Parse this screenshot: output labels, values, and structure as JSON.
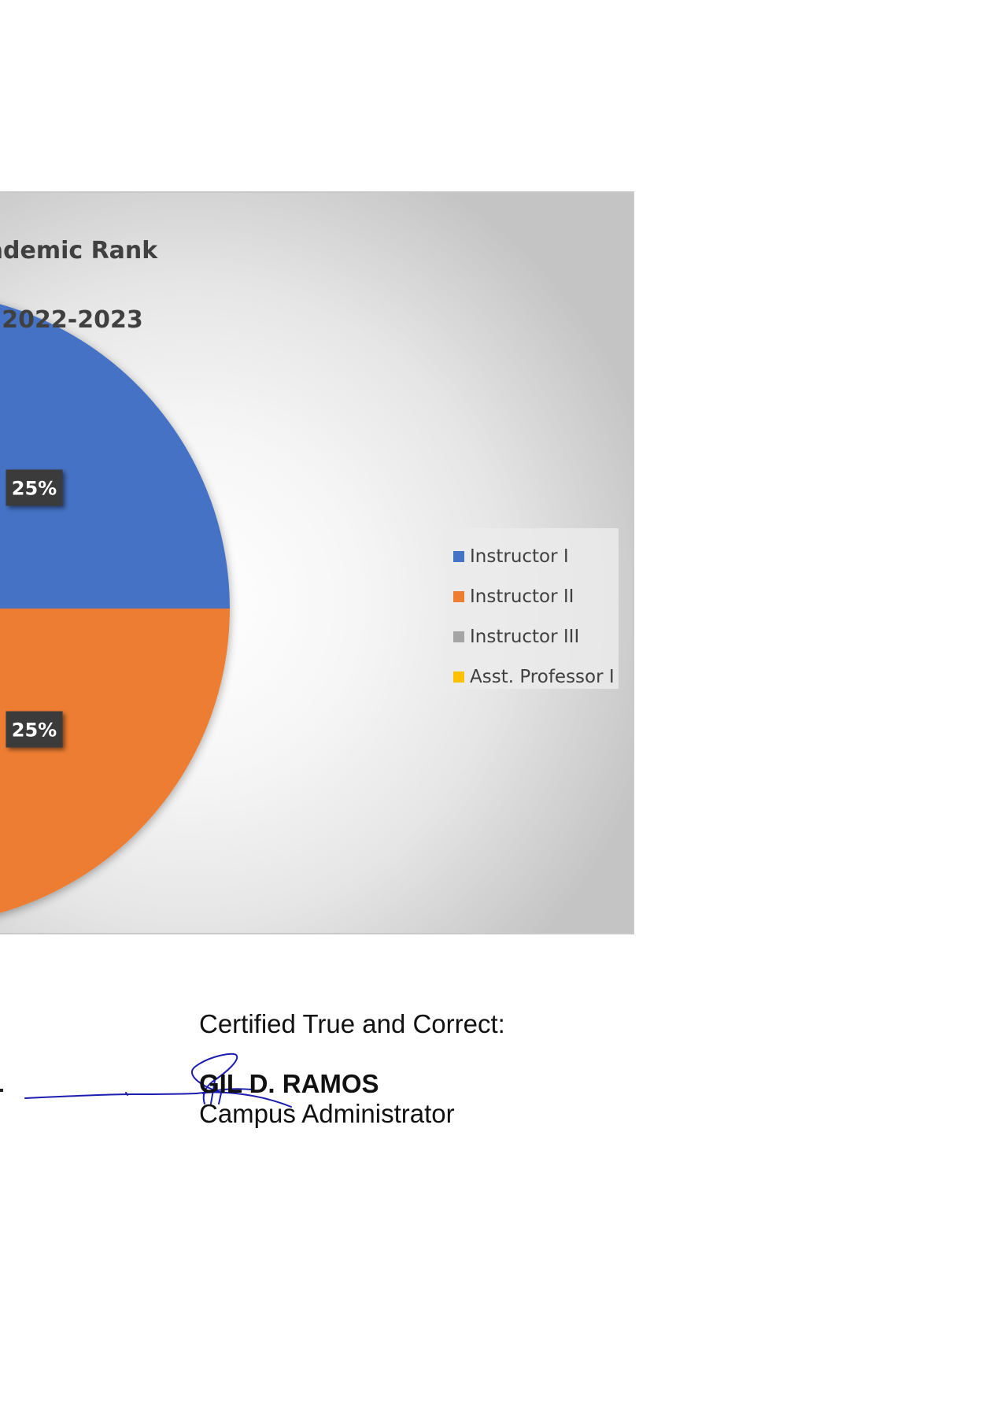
{
  "chart_data": {
    "type": "pie",
    "title": "…ademic Rank\n…2022-2023",
    "title_lines": [
      "ademic Rank",
      "2022-2023"
    ],
    "categories": [
      "Instructor I",
      "Instructor II",
      "Instructor III",
      "Asst. Professor I"
    ],
    "series": [
      {
        "values": [
          25,
          25,
          25,
          25
        ],
        "data_labels": [
          "25%",
          "25%",
          "",
          ""
        ]
      }
    ],
    "value_unit": "%",
    "colors": [
      "#4472c4",
      "#ed7d31",
      "#a5a5a5",
      "#ffc000"
    ],
    "legend_position": "right",
    "grid": false
  },
  "signature": {
    "certified_label": "Certified True and Correct:",
    "name": "GIL D. RAMOS",
    "title": "Campus Administrator",
    "ink_color": "#1c1cb0"
  }
}
